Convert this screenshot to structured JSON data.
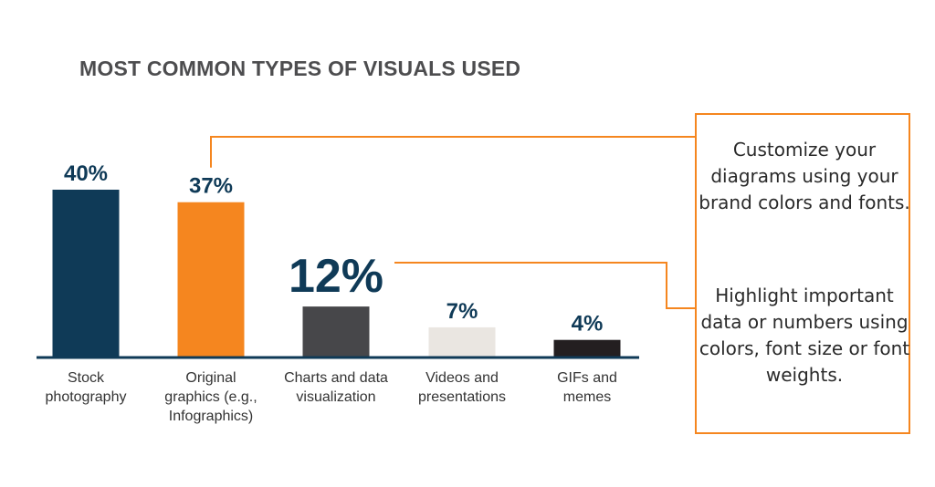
{
  "chart_data": {
    "type": "bar",
    "title": "MOST COMMON TYPES OF VISUALS USED",
    "categories": [
      [
        "Stock",
        "photography"
      ],
      [
        "Original",
        "graphics (e.g.,",
        "Infographics)"
      ],
      [
        "Charts and data",
        "visualization"
      ],
      [
        "Videos and",
        "presentations"
      ],
      [
        "GIFs and",
        "memes"
      ]
    ],
    "values": [
      40,
      37,
      12,
      7,
      4
    ],
    "value_labels": [
      "40%",
      "37%",
      "12%",
      "7%",
      "4%"
    ],
    "bar_colors": [
      "#0f3a57",
      "#f5861f",
      "#47474a",
      "#eae6e1",
      "#231f20"
    ],
    "ylim": [
      0,
      40
    ],
    "grid": false,
    "legend": "none"
  },
  "colors": {
    "accent": "#f5861f",
    "label_dark": "#0f3a57",
    "axis": "#0f3a57",
    "category_text": "#333333"
  },
  "callouts": {
    "first": "Customize your diagrams using your brand colors and fonts.",
    "second": "Highlight important data or numbers using colors, font size or font weights."
  }
}
